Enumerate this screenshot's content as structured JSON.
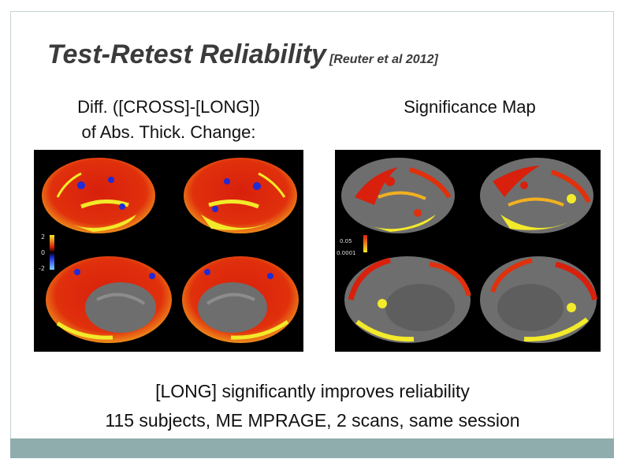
{
  "slide": {
    "title": "Test-Retest Reliability",
    "citation": "[Reuter et al 2012]",
    "left_caption_line1": "Diff. ([CROSS]-[LONG])",
    "left_caption_line2": "of Abs. Thick. Change:",
    "right_caption": "Significance Map",
    "left_scale": {
      "max": "2",
      "mid": "0",
      "min": "-2"
    },
    "right_scale": {
      "high": "0.05",
      "low": "0.0001"
    },
    "conclusion_line1": "[LONG] significantly improves reliability",
    "conclusion_line2": "115 subjects, ME MPRAGE, 2 scans, same session"
  },
  "colors": {
    "frame": "#c9d2d2",
    "bottom_bar": "#8fadad",
    "title": "#3b3b3b",
    "heat_red": "#d8200c",
    "heat_yellow": "#f2ea2a",
    "cool_blue": "#1f2bd6",
    "cortex_gray": "#6e6e6e"
  }
}
